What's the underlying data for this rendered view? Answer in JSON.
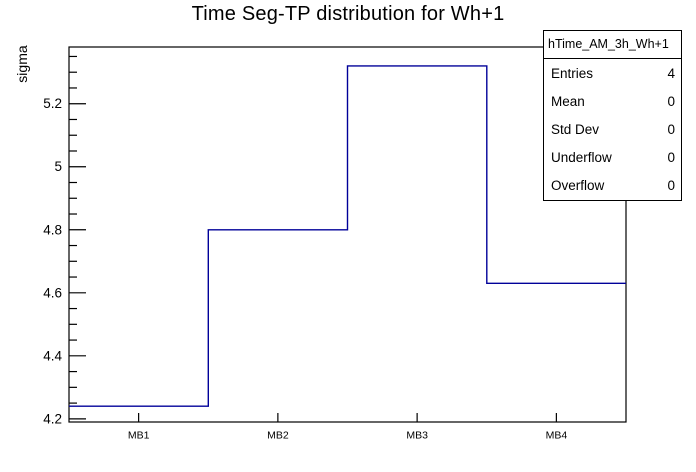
{
  "chart_data": {
    "type": "bar",
    "subtype": "step-histogram-outline",
    "title": "Time Seg-TP distribution for Wh+1",
    "xlabel": "",
    "ylabel": "sigma",
    "categories": [
      "MB1",
      "MB2",
      "MB3",
      "MB4"
    ],
    "values": [
      4.24,
      4.8,
      5.32,
      4.63
    ],
    "ylim": [
      4.19,
      5.38
    ],
    "yticks": [
      4.2,
      4.4,
      4.6,
      4.8,
      5,
      5.2
    ],
    "ytick_labels": [
      "4.2",
      "4.4",
      "4.6",
      "4.8",
      "5",
      "5.2"
    ],
    "y_minor_tick_step": 0.05,
    "grid": false,
    "legend_position": "none",
    "line_color": "#000099",
    "frame_color": "#000000",
    "background_color": "#ffffff"
  },
  "stats_box": {
    "header": "hTime_AM_3h_Wh+1",
    "rows": [
      {
        "label": "Entries",
        "value": "4"
      },
      {
        "label": "Mean",
        "value": "0"
      },
      {
        "label": "Std Dev",
        "value": "0"
      },
      {
        "label": "Underflow",
        "value": "0"
      },
      {
        "label": "Overflow",
        "value": "0"
      }
    ]
  }
}
